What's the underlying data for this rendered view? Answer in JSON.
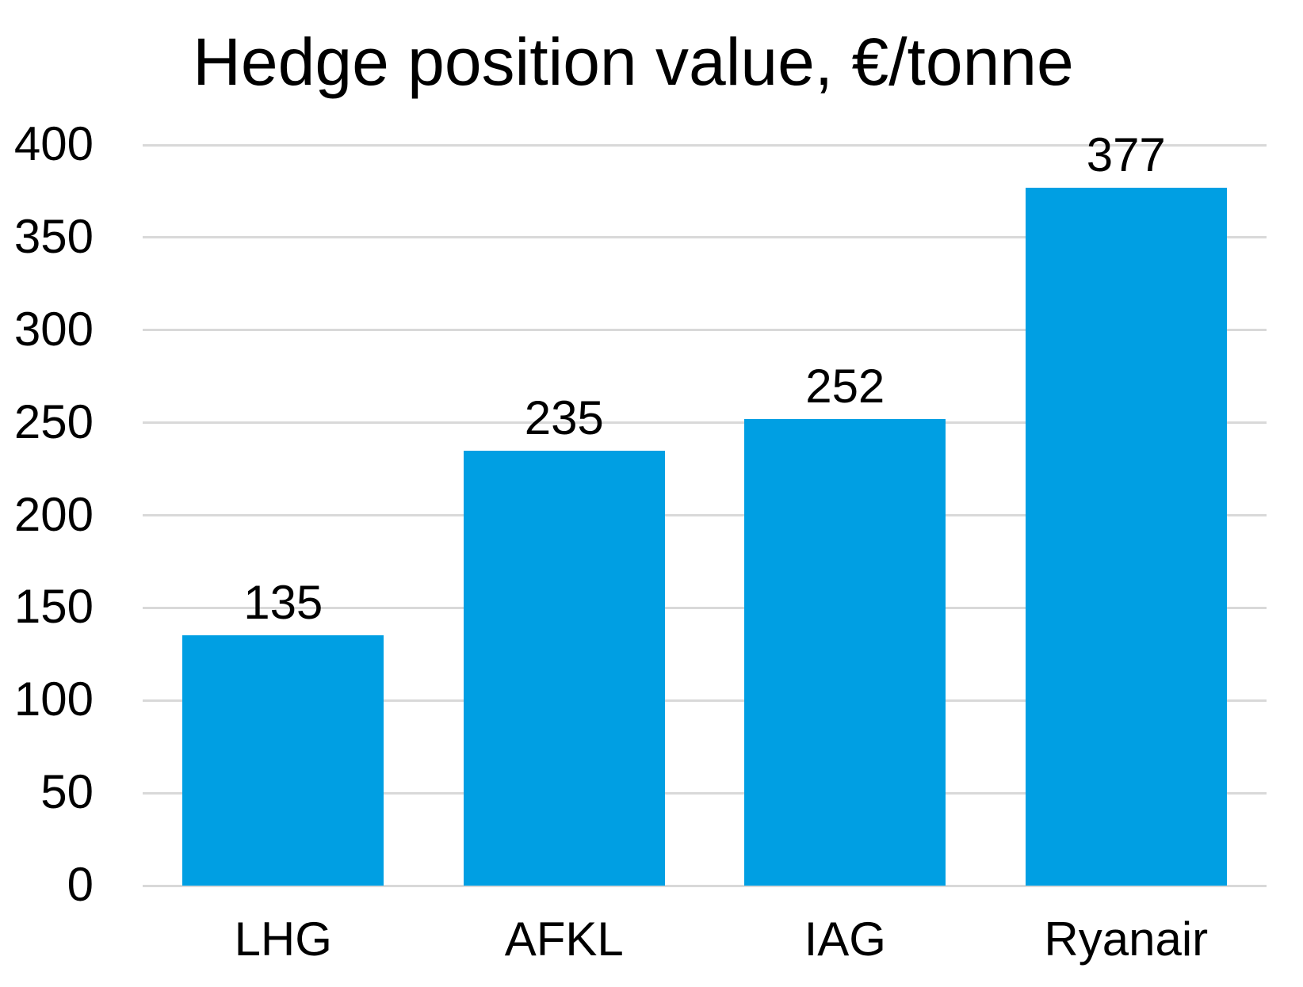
{
  "chart_data": {
    "type": "bar",
    "title": "Hedge position value, €/tonne",
    "categories": [
      "LHG",
      "AFKL",
      "IAG",
      "Ryanair"
    ],
    "values": [
      135,
      235,
      252,
      377
    ],
    "data_labels": [
      "135",
      "235",
      "252",
      "377"
    ],
    "xlabel": "",
    "ylabel": "",
    "ylim": [
      0,
      400
    ],
    "yticks": [
      0,
      50,
      100,
      150,
      200,
      250,
      300,
      350,
      400
    ],
    "grid": true,
    "legend": "none",
    "colors": {
      "bar": "#009FE3",
      "gridline": "#D9D9D9",
      "text": "#000000",
      "background": "#FFFFFF"
    }
  }
}
